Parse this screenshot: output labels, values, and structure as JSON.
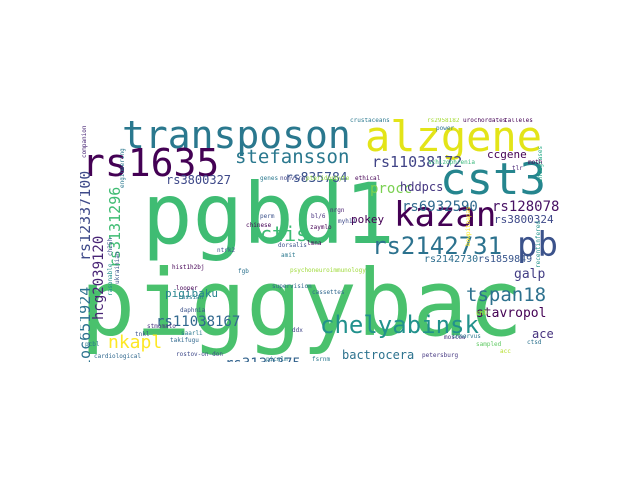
{
  "words": [
    {
      "text": "piggybac",
      "color": "#4ac16d"
    },
    {
      "text": "pgbd1",
      "color": "#3fbc73"
    },
    {
      "text": "transposon",
      "color": "#2a788e"
    },
    {
      "text": "alzgene",
      "color": "#e3e418"
    },
    {
      "text": "cst3",
      "color": "#25858e"
    },
    {
      "text": "rs1635",
      "color": "#440154"
    },
    {
      "text": "kazan",
      "color": "#440154"
    },
    {
      "text": "pb",
      "color": "#3b528b"
    },
    {
      "text": "rs2142731",
      "color": "#2c728e"
    },
    {
      "text": "chelyabinsk",
      "color": "#21918c"
    },
    {
      "text": "stefansson",
      "color": "#2a788e"
    },
    {
      "text": "ctis",
      "color": "#3dbc74"
    },
    {
      "text": "tspan18",
      "color": "#2d718e"
    },
    {
      "text": "nkapl",
      "color": "#fde725"
    },
    {
      "text": "rs11038172",
      "color": "#414487"
    },
    {
      "text": "rs6932590",
      "color": "#30698e"
    },
    {
      "text": "rs12807809",
      "color": "#471164"
    },
    {
      "text": "rs835784",
      "color": "#3b528b"
    },
    {
      "text": "rs3800327",
      "color": "#3e4989"
    },
    {
      "text": "rs11038167",
      "color": "#31688e"
    },
    {
      "text": "rs3130375",
      "color": "#33638d"
    },
    {
      "text": "loc651924",
      "color": "#2c728e"
    },
    {
      "text": "rs12337100",
      "color": "#3e4a89"
    },
    {
      "text": "rs3131296",
      "color": "#3fbc73"
    },
    {
      "text": "hcg2039120",
      "color": "#482475"
    },
    {
      "text": "procc",
      "color": "#7ad151"
    },
    {
      "text": "hddpcs",
      "color": "#453781"
    },
    {
      "text": "ccgene",
      "color": "#440154"
    },
    {
      "text": "rs3800324",
      "color": "#3e4989"
    },
    {
      "text": "rs2142730",
      "color": "#2e6e8e"
    },
    {
      "text": "rs1859849",
      "color": "#39568c"
    },
    {
      "text": "galp",
      "color": "#433e85"
    },
    {
      "text": "stavropol",
      "color": "#440154"
    },
    {
      "text": "ace",
      "color": "#46327e"
    },
    {
      "text": "pokey",
      "color": "#440154"
    },
    {
      "text": "pigibaku",
      "color": "#25848e"
    },
    {
      "text": "bactrocera",
      "color": "#2c728e"
    },
    {
      "text": "trichoplusia",
      "color": "#482878"
    },
    {
      "text": "crustaceans",
      "color": "#2a788e"
    },
    {
      "text": "rs2958182",
      "color": "#a5db36"
    },
    {
      "text": "urochordates",
      "color": "#440154"
    },
    {
      "text": "talleles",
      "color": "#440154"
    },
    {
      "text": "companion",
      "color": "#482475"
    },
    {
      "text": "power",
      "color": "#2c728e"
    },
    {
      "text": "schizophrenia",
      "color": "#35b779"
    },
    {
      "text": "nonviral",
      "color": "#414487"
    },
    {
      "text": "ethical",
      "color": "#440154"
    },
    {
      "text": "pteridophyte",
      "color": "#8fd744"
    },
    {
      "text": "integrases",
      "color": "#22a884"
    },
    {
      "text": "recentinfered",
      "color": "#21918c"
    },
    {
      "text": "engineering",
      "color": "#2a788e"
    },
    {
      "text": "chinese",
      "color": "#440154"
    },
    {
      "text": "perm",
      "color": "#3b528b"
    },
    {
      "text": "nrgn",
      "color": "#481f70"
    },
    {
      "text": "dorsalis",
      "color": "#3b528b"
    },
    {
      "text": "amit",
      "color": "#2a788e"
    },
    {
      "text": "psychoneuroimmunology",
      "color": "#9fda3a"
    },
    {
      "text": "supervision",
      "color": "#31688e"
    },
    {
      "text": "cassettes",
      "color": "#31688e"
    },
    {
      "text": "fgb",
      "color": "#2c728e"
    },
    {
      "text": "hist1h2bj",
      "color": "#440154"
    },
    {
      "text": "russian",
      "color": "#2a788e"
    },
    {
      "text": "daphnia",
      "color": "#3b528b"
    },
    {
      "text": "looper",
      "color": "#440154"
    },
    {
      "text": "cardiological",
      "color": "#31688e"
    },
    {
      "text": "rostov-on-don",
      "color": "#3e4989"
    },
    {
      "text": "picalm",
      "color": "#2a788e"
    },
    {
      "text": "petersburg",
      "color": "#453781"
    },
    {
      "text": "moscow",
      "color": "#46327e"
    },
    {
      "text": "ctsd",
      "color": "#2c728e"
    },
    {
      "text": "ddx",
      "color": "#414487"
    },
    {
      "text": "pcbl",
      "color": "#2a788e"
    },
    {
      "text": "bl/6",
      "color": "#46327e"
    },
    {
      "text": "myh11",
      "color": "#3e4989"
    },
    {
      "text": "moth",
      "color": "#440154"
    },
    {
      "text": "tlr",
      "color": "#482475"
    },
    {
      "text": "sampled",
      "color": "#5ec962"
    },
    {
      "text": "saarli",
      "color": "#2a788e"
    },
    {
      "text": "takifugu",
      "color": "#31688e"
    },
    {
      "text": "tnkl",
      "color": "#3b528b"
    },
    {
      "text": "cnl",
      "color": "#c2df23"
    },
    {
      "text": "lmna",
      "color": "#440154"
    },
    {
      "text": "ntrk2",
      "color": "#3b528b"
    },
    {
      "text": "genes",
      "color": "#2a788e"
    },
    {
      "text": "stmomato",
      "color": "#46327e"
    },
    {
      "text": "cel",
      "color": "#7ad151"
    },
    {
      "text": "innervus",
      "color": "#2a788e"
    },
    {
      "text": "zaymlo",
      "color": "#440154"
    },
    {
      "text": "ch25h",
      "color": "#3b528b"
    },
    {
      "text": "acc",
      "color": "#b5de2b"
    },
    {
      "text": "rasonable",
      "color": "#21918c"
    },
    {
      "text": "ukrainian",
      "color": "#3b528b"
    },
    {
      "text": "bowpitoapas",
      "color": "#fde725"
    },
    {
      "text": "fsrnm",
      "color": "#2a788e"
    }
  ]
}
